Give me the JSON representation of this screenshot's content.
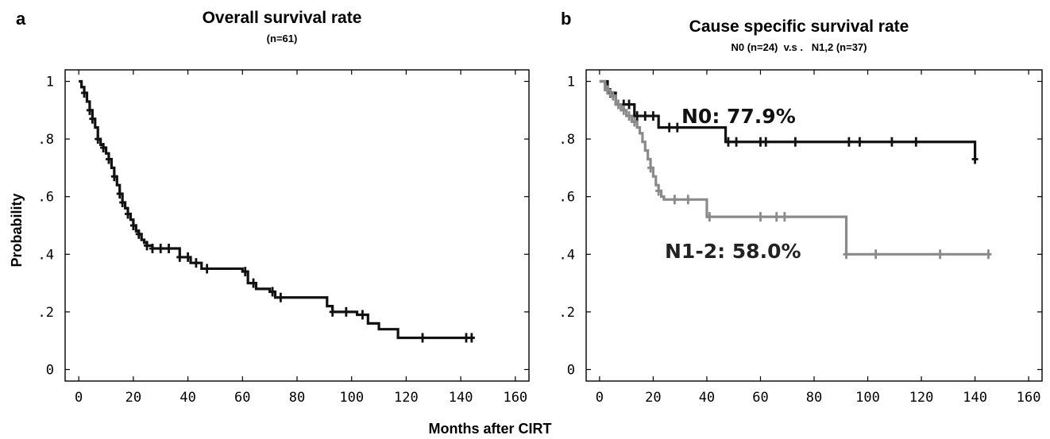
{
  "shared_xlabel": "Months after CIRT",
  "chart_data": [
    {
      "type": "line",
      "panel": "a",
      "title": "Overall survival rate",
      "subtitle": "(n=61)",
      "xlabel": "",
      "ylabel": "Probability",
      "xlim": [
        -5,
        165
      ],
      "ylim": [
        -0.04,
        1.04
      ],
      "xticks": [
        0,
        20,
        40,
        60,
        80,
        100,
        120,
        140,
        160
      ],
      "xtick_labels": [
        "0",
        "20",
        "40",
        "60",
        "80",
        "100",
        "120",
        "140",
        "160"
      ],
      "yticks": [
        0,
        0.2,
        0.4,
        0.6,
        0.8,
        1
      ],
      "ytick_labels": [
        "0",
        ".2",
        ".4",
        ".6",
        ".8",
        "1"
      ],
      "grid": false,
      "series": [
        {
          "color": "#111111",
          "x": [
            0,
            1,
            2,
            3,
            4,
            5,
            6,
            7,
            8,
            9,
            10,
            11,
            12,
            13,
            14,
            15,
            16,
            17,
            18,
            19,
            20,
            21,
            22,
            23,
            24,
            25,
            27,
            28,
            29,
            37,
            41,
            45,
            60,
            62,
            65,
            70,
            72,
            91,
            93,
            102,
            106,
            110,
            117,
            145
          ],
          "y": [
            1.0,
            0.98,
            0.96,
            0.93,
            0.9,
            0.87,
            0.84,
            0.8,
            0.78,
            0.77,
            0.75,
            0.73,
            0.7,
            0.67,
            0.64,
            0.61,
            0.58,
            0.56,
            0.54,
            0.52,
            0.5,
            0.48,
            0.47,
            0.45,
            0.44,
            0.43,
            0.42,
            0.42,
            0.42,
            0.39,
            0.37,
            0.35,
            0.34,
            0.3,
            0.28,
            0.27,
            0.25,
            0.22,
            0.2,
            0.19,
            0.16,
            0.14,
            0.11,
            0.11
          ],
          "censored_x": [
            2,
            4,
            5,
            7,
            9,
            11,
            13,
            15,
            16,
            18,
            20,
            22,
            25,
            27,
            30,
            33,
            37,
            40,
            43,
            47,
            61,
            64,
            71,
            74,
            93,
            98,
            104,
            126,
            142,
            144
          ]
        }
      ]
    },
    {
      "type": "line",
      "panel": "b",
      "title": "Cause specific survival rate",
      "subtitle": "N0 (n=24)  v.s .   N1,2 (n=37)",
      "xlabel": "",
      "ylabel": "",
      "xlim": [
        -5,
        165
      ],
      "ylim": [
        -0.04,
        1.04
      ],
      "xticks": [
        0,
        20,
        40,
        60,
        80,
        100,
        120,
        140,
        160
      ],
      "xtick_labels": [
        "0",
        "20",
        "40",
        "60",
        "80",
        "100",
        "120",
        "140",
        "160"
      ],
      "yticks": [
        0,
        0.2,
        0.4,
        0.6,
        0.8,
        1
      ],
      "ytick_labels": [
        "0",
        ".2",
        ".4",
        ".6",
        ".8",
        "1"
      ],
      "grid": false,
      "annotations": [
        "N0: 77.9%",
        "N1-2: 58.0%"
      ],
      "series": [
        {
          "color": "#111111",
          "x": [
            0,
            3,
            6,
            13,
            22,
            47,
            140
          ],
          "y": [
            1.0,
            0.96,
            0.92,
            0.88,
            0.84,
            0.79,
            0.73
          ],
          "censored_x": [
            4,
            9,
            11,
            14,
            17,
            20,
            26,
            29,
            48,
            51,
            60,
            62,
            73,
            93,
            97,
            109,
            118,
            140
          ]
        },
        {
          "color": "#8a8a8a",
          "x": [
            0,
            2,
            4,
            6,
            8,
            10,
            12,
            14,
            15,
            16,
            17,
            18,
            19,
            20,
            21,
            22,
            23,
            24,
            25,
            40,
            92,
            144
          ],
          "y": [
            1.0,
            0.97,
            0.95,
            0.92,
            0.9,
            0.88,
            0.86,
            0.84,
            0.82,
            0.79,
            0.76,
            0.73,
            0.7,
            0.67,
            0.64,
            0.62,
            0.6,
            0.59,
            0.59,
            0.53,
            0.4,
            0.4
          ],
          "censored_x": [
            3,
            5,
            7,
            9,
            11,
            13,
            19,
            22,
            28,
            33,
            41,
            60,
            66,
            69,
            92,
            103,
            127,
            145
          ]
        }
      ]
    }
  ]
}
